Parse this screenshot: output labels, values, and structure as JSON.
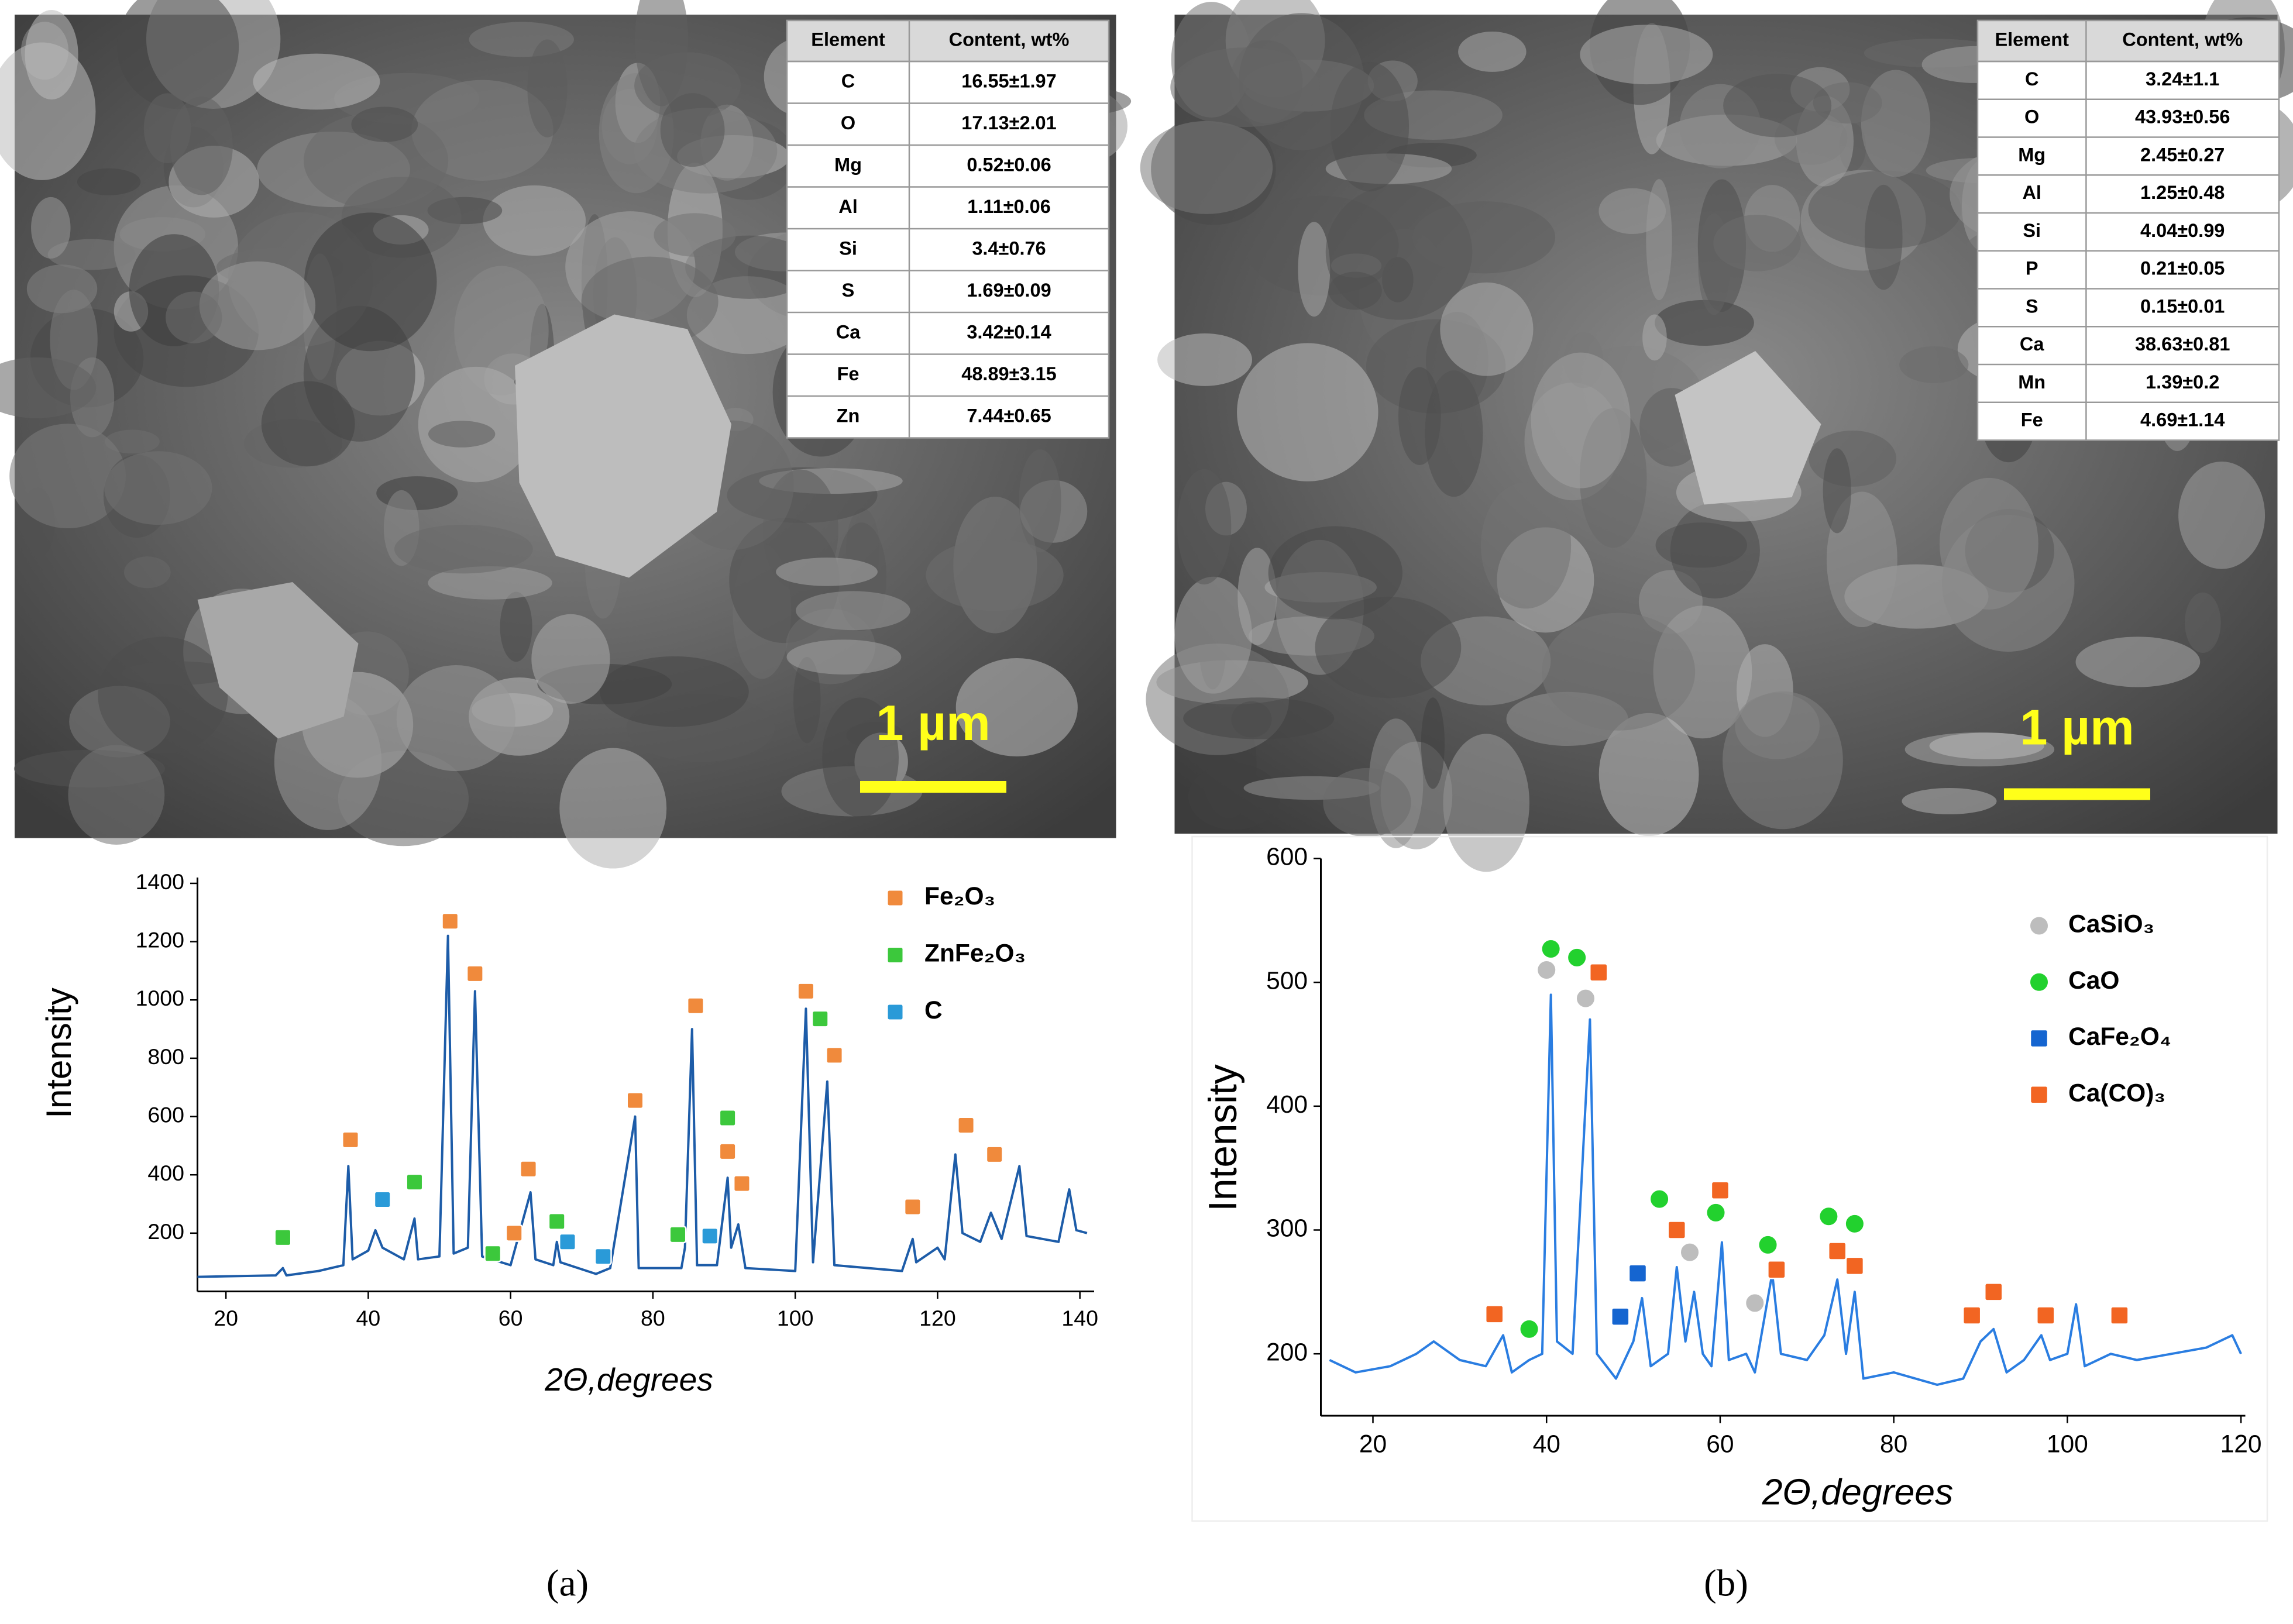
{
  "panels": [
    {
      "label": "(a)",
      "scale_bar": "1 µm",
      "table": {
        "header": [
          "Element",
          "Content, wt%"
        ],
        "rows": [
          [
            "C",
            "16.55±1.97"
          ],
          [
            "O",
            "17.13±2.01"
          ],
          [
            "Mg",
            "0.52±0.06"
          ],
          [
            "Al",
            "1.11±0.06"
          ],
          [
            "Si",
            "3.4±0.76"
          ],
          [
            "S",
            "1.69±0.09"
          ],
          [
            "Ca",
            "3.42±0.14"
          ],
          [
            "Fe",
            "48.89±3.15"
          ],
          [
            "Zn",
            "7.44±0.65"
          ]
        ]
      }
    },
    {
      "label": "(b)",
      "scale_bar": "1 µm",
      "table": {
        "header": [
          "Element",
          "Content, wt%"
        ],
        "rows": [
          [
            "C",
            "3.24±1.1"
          ],
          [
            "O",
            "43.93±0.56"
          ],
          [
            "Mg",
            "2.45±0.27"
          ],
          [
            "Al",
            "1.25±0.48"
          ],
          [
            "Si",
            "4.04±0.99"
          ],
          [
            "P",
            "0.21±0.05"
          ],
          [
            "S",
            "0.15±0.01"
          ],
          [
            "Ca",
            "38.63±0.81"
          ],
          [
            "Mn",
            "1.39±0.2"
          ],
          [
            "Fe",
            "4.69±1.14"
          ]
        ]
      }
    }
  ],
  "chart_data": [
    {
      "type": "line",
      "x_label": "2Θ,degrees",
      "y_label": "Intensity",
      "color": "#1d5ca8",
      "legend": "upper right",
      "xlim": [
        16,
        142
      ],
      "ylim": [
        0,
        1420
      ],
      "xticks": [
        20,
        40,
        60,
        80,
        100,
        120,
        140
      ],
      "yticks": [
        200,
        400,
        600,
        800,
        1000,
        1200,
        1400
      ],
      "x": [
        16,
        27,
        28,
        28.5,
        33,
        36.5,
        37.2,
        37.8,
        40,
        41,
        42,
        45,
        46.5,
        47,
        50,
        51.2,
        52,
        54,
        55,
        56,
        60,
        62.8,
        63.5,
        66,
        66.5,
        67,
        72,
        74,
        77.5,
        78,
        84,
        84.5,
        85.5,
        86.2,
        89,
        90.5,
        91,
        92,
        93,
        100,
        101.5,
        102.5,
        104.5,
        105.5,
        115,
        116.5,
        117,
        120,
        121,
        122.5,
        123.5,
        126,
        127.5,
        129,
        131.5,
        132.5,
        137,
        138.5,
        139.5,
        141
      ],
      "values": [
        50,
        55,
        80,
        55,
        70,
        90,
        430,
        110,
        140,
        210,
        150,
        110,
        250,
        110,
        120,
        1220,
        130,
        150,
        1030,
        120,
        90,
        340,
        110,
        90,
        170,
        100,
        60,
        80,
        600,
        80,
        80,
        150,
        900,
        90,
        90,
        390,
        150,
        230,
        80,
        70,
        970,
        100,
        720,
        90,
        70,
        180,
        100,
        150,
        110,
        470,
        200,
        170,
        270,
        180,
        430,
        190,
        170,
        350,
        210,
        200
      ],
      "series": [
        {
          "name": "Fe₂O₃",
          "color": "#f08a3c",
          "shape": "square",
          "x": [
            37.5,
            51.5,
            55,
            60.5,
            62.5,
            77.5,
            86,
            90.5,
            92.5,
            101.5,
            105.5,
            116.5,
            124,
            128
          ],
          "values": [
            520,
            1270,
            1090,
            200,
            420,
            655,
            980,
            480,
            370,
            1030,
            810,
            290,
            570,
            470
          ]
        },
        {
          "name": "ZnFe₂O₃",
          "color": "#3cc83c",
          "shape": "square",
          "x": [
            28,
            46.5,
            57.5,
            66.5,
            83.5,
            90.5,
            103.5
          ],
          "values": [
            185,
            375,
            130,
            240,
            195,
            595,
            935
          ]
        },
        {
          "name": "C",
          "color": "#2a9ad8",
          "shape": "square",
          "x": [
            42,
            68,
            73,
            88
          ],
          "values": [
            315,
            170,
            120,
            190
          ]
        }
      ]
    },
    {
      "type": "line",
      "x_label": "2Θ,degrees",
      "y_label": "Intensity",
      "color": "#2a7de1",
      "legend": "upper right",
      "xlim": [
        14,
        120.5
      ],
      "ylim": [
        150,
        600
      ],
      "xticks": [
        20,
        40,
        60,
        80,
        100,
        120
      ],
      "yticks": [
        200,
        300,
        400,
        500,
        600
      ],
      "x": [
        15,
        18,
        22,
        25,
        27,
        30,
        33,
        35,
        36,
        38,
        39.5,
        40.5,
        41.2,
        43,
        45,
        45.8,
        48,
        50,
        51,
        52,
        54,
        55,
        56,
        57,
        58,
        59,
        60.2,
        61,
        63,
        64,
        66,
        67,
        70,
        72,
        73.5,
        74.5,
        75.5,
        76.5,
        80,
        85,
        88,
        90,
        91.5,
        93,
        95,
        97,
        98,
        100,
        101,
        102,
        105,
        108,
        112,
        116,
        119,
        120
      ],
      "values": [
        195,
        185,
        190,
        200,
        210,
        195,
        190,
        215,
        185,
        195,
        200,
        490,
        210,
        200,
        470,
        200,
        180,
        210,
        245,
        190,
        200,
        270,
        210,
        250,
        200,
        190,
        290,
        195,
        200,
        185,
        265,
        200,
        195,
        215,
        260,
        200,
        250,
        180,
        185,
        175,
        180,
        210,
        220,
        185,
        195,
        215,
        195,
        200,
        240,
        190,
        200,
        195,
        200,
        205,
        215,
        200
      ],
      "series": [
        {
          "name": "CaSiO₃",
          "color": "#bdbdbd",
          "shape": "circle",
          "x": [
            40,
            44.5,
            56.5,
            64
          ],
          "values": [
            510,
            487,
            282,
            241
          ]
        },
        {
          "name": "CaO",
          "color": "#22d12e",
          "shape": "circle",
          "x": [
            38,
            40.5,
            43.5,
            53,
            59.5,
            65.5,
            72.5,
            75.5
          ],
          "values": [
            220,
            527,
            520,
            325,
            314,
            288,
            311,
            305
          ]
        },
        {
          "name": "CaFe₂O₄",
          "color": "#1565d0",
          "shape": "square",
          "x": [
            48.5,
            50.5
          ],
          "values": [
            230,
            265
          ]
        },
        {
          "name": "Ca(CO)₃",
          "color": "#f26522",
          "shape": "square",
          "x": [
            34,
            46,
            55,
            60,
            66.5,
            73.5,
            75.5,
            89,
            91.5,
            97.5,
            106
          ],
          "values": [
            232,
            508,
            300,
            332,
            268,
            283,
            271,
            231,
            250,
            231,
            231
          ]
        }
      ]
    }
  ]
}
